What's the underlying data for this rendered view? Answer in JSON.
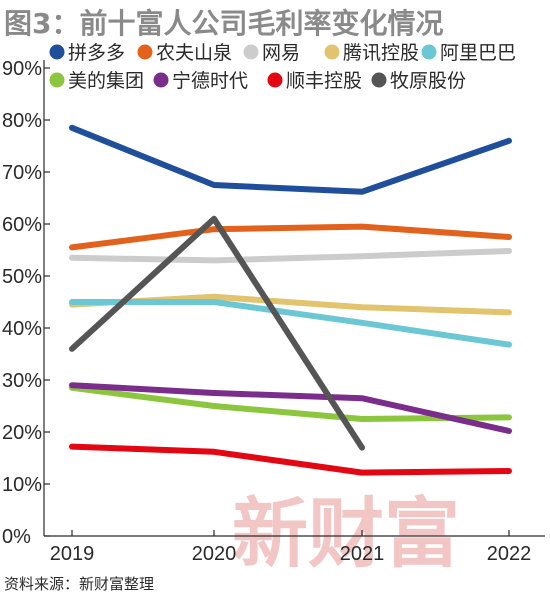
{
  "chart_data": {
    "type": "line",
    "title": "图3：前十富人公司毛利率变化情况",
    "x": [
      "2019",
      "2020",
      "2021",
      "2022"
    ],
    "ylim": [
      0,
      90
    ],
    "y_ticks": [
      "0%",
      "10%",
      "20%",
      "30%",
      "40%",
      "50%",
      "60%",
      "70%",
      "80%",
      "90%"
    ],
    "y_tick_values": [
      0,
      10,
      20,
      30,
      40,
      50,
      60,
      70,
      80,
      90
    ],
    "grid": false,
    "legend_position": "top",
    "series": [
      {
        "name": "拼多多",
        "color": "#1f4e9b",
        "values": [
          78.5,
          67.5,
          66.2,
          76.0
        ]
      },
      {
        "name": "农夫山泉",
        "color": "#e2611c",
        "values": [
          55.5,
          59.0,
          59.5,
          57.5
        ]
      },
      {
        "name": "网易",
        "color": "#cccccc",
        "values": [
          53.5,
          53.0,
          53.8,
          54.8
        ]
      },
      {
        "name": "腾讯控股",
        "color": "#e2c46f",
        "values": [
          44.5,
          46.0,
          44.0,
          43.0
        ]
      },
      {
        "name": "阿里巴巴",
        "color": "#6cc7d4",
        "values": [
          45.0,
          45.0,
          41.0,
          36.8
        ]
      },
      {
        "name": "美的集团",
        "color": "#8cc63e",
        "values": [
          28.5,
          25.0,
          22.5,
          22.8
        ]
      },
      {
        "name": "宁德时代",
        "color": "#7b2d8b",
        "values": [
          29.0,
          27.5,
          26.5,
          20.2
        ]
      },
      {
        "name": "顺丰控股",
        "color": "#e30613",
        "values": [
          17.2,
          16.2,
          12.2,
          12.5
        ]
      },
      {
        "name": "牧原股份",
        "color": "#555555",
        "values": [
          36.0,
          61.0,
          17.0,
          null
        ]
      }
    ],
    "source": "资料来源：新财富整理",
    "watermark": "新财富"
  }
}
